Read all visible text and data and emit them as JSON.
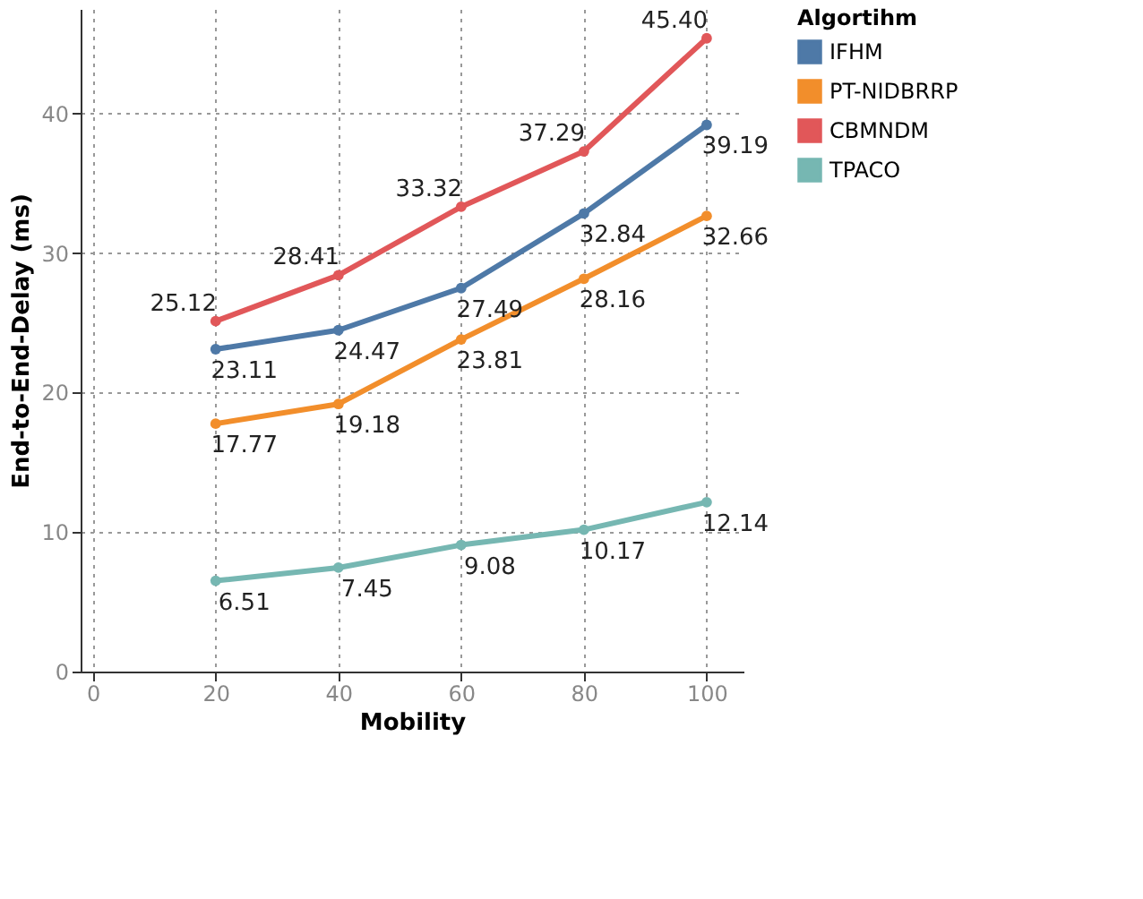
{
  "chart_data": {
    "type": "line",
    "xlabel": "Mobility",
    "ylabel": "End-to-End-Delay (ms)",
    "legend_title": "Algortihm",
    "x": [
      20,
      40,
      60,
      80,
      100
    ],
    "series": [
      {
        "name": "IFHM",
        "color": "#4e79a7",
        "values": [
          23.11,
          24.47,
          27.49,
          32.84,
          39.19
        ]
      },
      {
        "name": "PT-NIDBRRP",
        "color": "#f28e2b",
        "values": [
          17.77,
          19.18,
          23.81,
          28.16,
          32.66
        ]
      },
      {
        "name": "CBMNDM",
        "color": "#e15759",
        "values": [
          25.12,
          28.41,
          33.32,
          37.29,
          45.4
        ],
        "value_labels": [
          "25.12",
          "28.41",
          "33.32",
          "37.29",
          "45.40"
        ]
      },
      {
        "name": "TPACO",
        "color": "#76b7b2",
        "values": [
          6.51,
          7.45,
          9.08,
          10.17,
          12.14
        ]
      }
    ],
    "xlim": [
      -2,
      106
    ],
    "xticks": [
      0,
      20,
      40,
      60,
      80,
      100
    ],
    "ylim": [
      0,
      47.5
    ],
    "yticks": [
      0,
      10,
      20,
      30,
      40
    ],
    "grid": true,
    "legend": "top right",
    "marker": "circle",
    "line_style": "solid",
    "data_labels": true
  }
}
